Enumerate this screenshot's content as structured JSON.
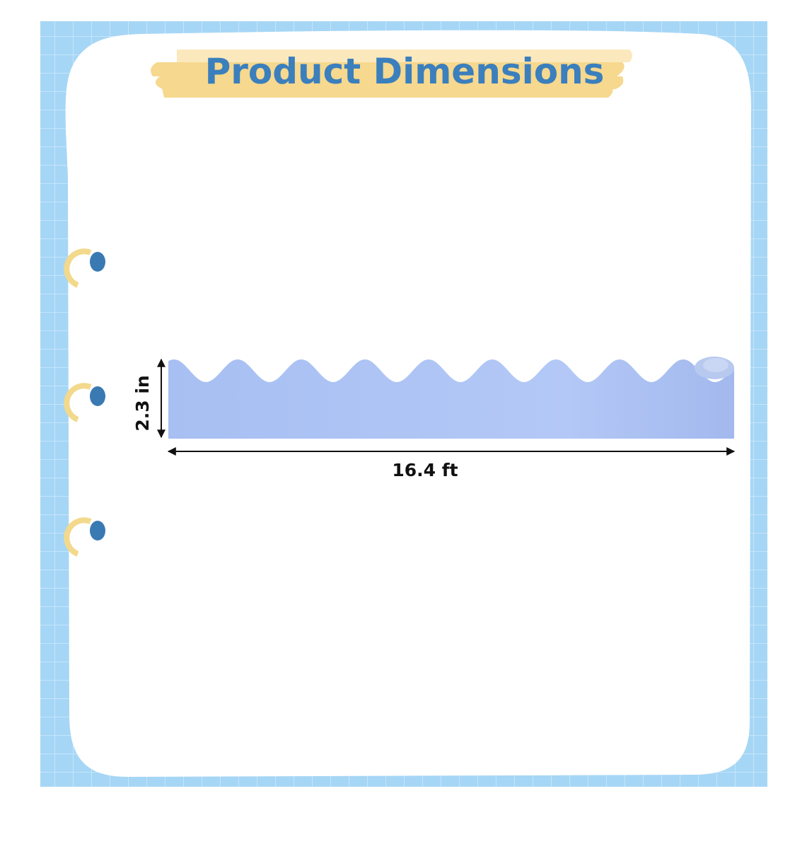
{
  "title": "Product Dimensions",
  "dimensions": {
    "height_label": "2.3 in",
    "length_label": "16.4 ft"
  },
  "colors": {
    "grid_background": "#a6d6f5",
    "grid_lines": "#cfeaff",
    "card": "#ffffff",
    "title_text": "#3b7fbd",
    "title_highlight": "#f6d88e",
    "border_strip": "#a9c0f2",
    "ring": "#f3d98c",
    "ring_hole": "#3a7ab3"
  },
  "icons": [
    "binder-ring-icon",
    "binder-ring-icon",
    "binder-ring-icon",
    "arrow-vertical-icon",
    "arrow-horizontal-icon"
  ]
}
